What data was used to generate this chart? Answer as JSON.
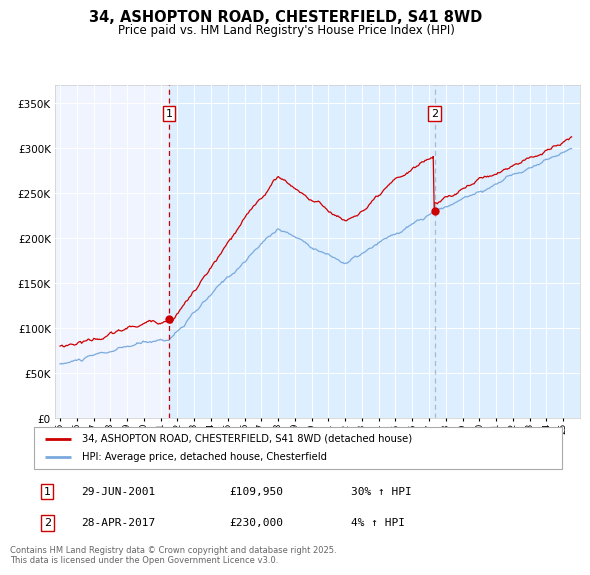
{
  "title": "34, ASHOPTON ROAD, CHESTERFIELD, S41 8WD",
  "subtitle": "Price paid vs. HM Land Registry's House Price Index (HPI)",
  "legend_line1": "34, ASHOPTON ROAD, CHESTERFIELD, S41 8WD (detached house)",
  "legend_line2": "HPI: Average price, detached house, Chesterfield",
  "annotation1_date": "29-JUN-2001",
  "annotation1_price": "£109,950",
  "annotation1_hpi": "30% ↑ HPI",
  "annotation2_date": "28-APR-2017",
  "annotation2_price": "£230,000",
  "annotation2_hpi": "4% ↑ HPI",
  "footer": "Contains HM Land Registry data © Crown copyright and database right 2025.\nThis data is licensed under the Open Government Licence v3.0.",
  "red_color": "#cc0000",
  "blue_color": "#7aaadd",
  "shade_color": "#ddeeff",
  "plot_bg_color": "#f0f4ff",
  "ylim": [
    0,
    370000
  ],
  "yticks": [
    0,
    50000,
    100000,
    150000,
    200000,
    250000,
    300000,
    350000
  ],
  "x_start_year": 1995,
  "x_end_year": 2026,
  "sale1_year": 2001.5,
  "sale1_value": 109950,
  "sale2_year": 2017.33,
  "sale2_value": 230000
}
